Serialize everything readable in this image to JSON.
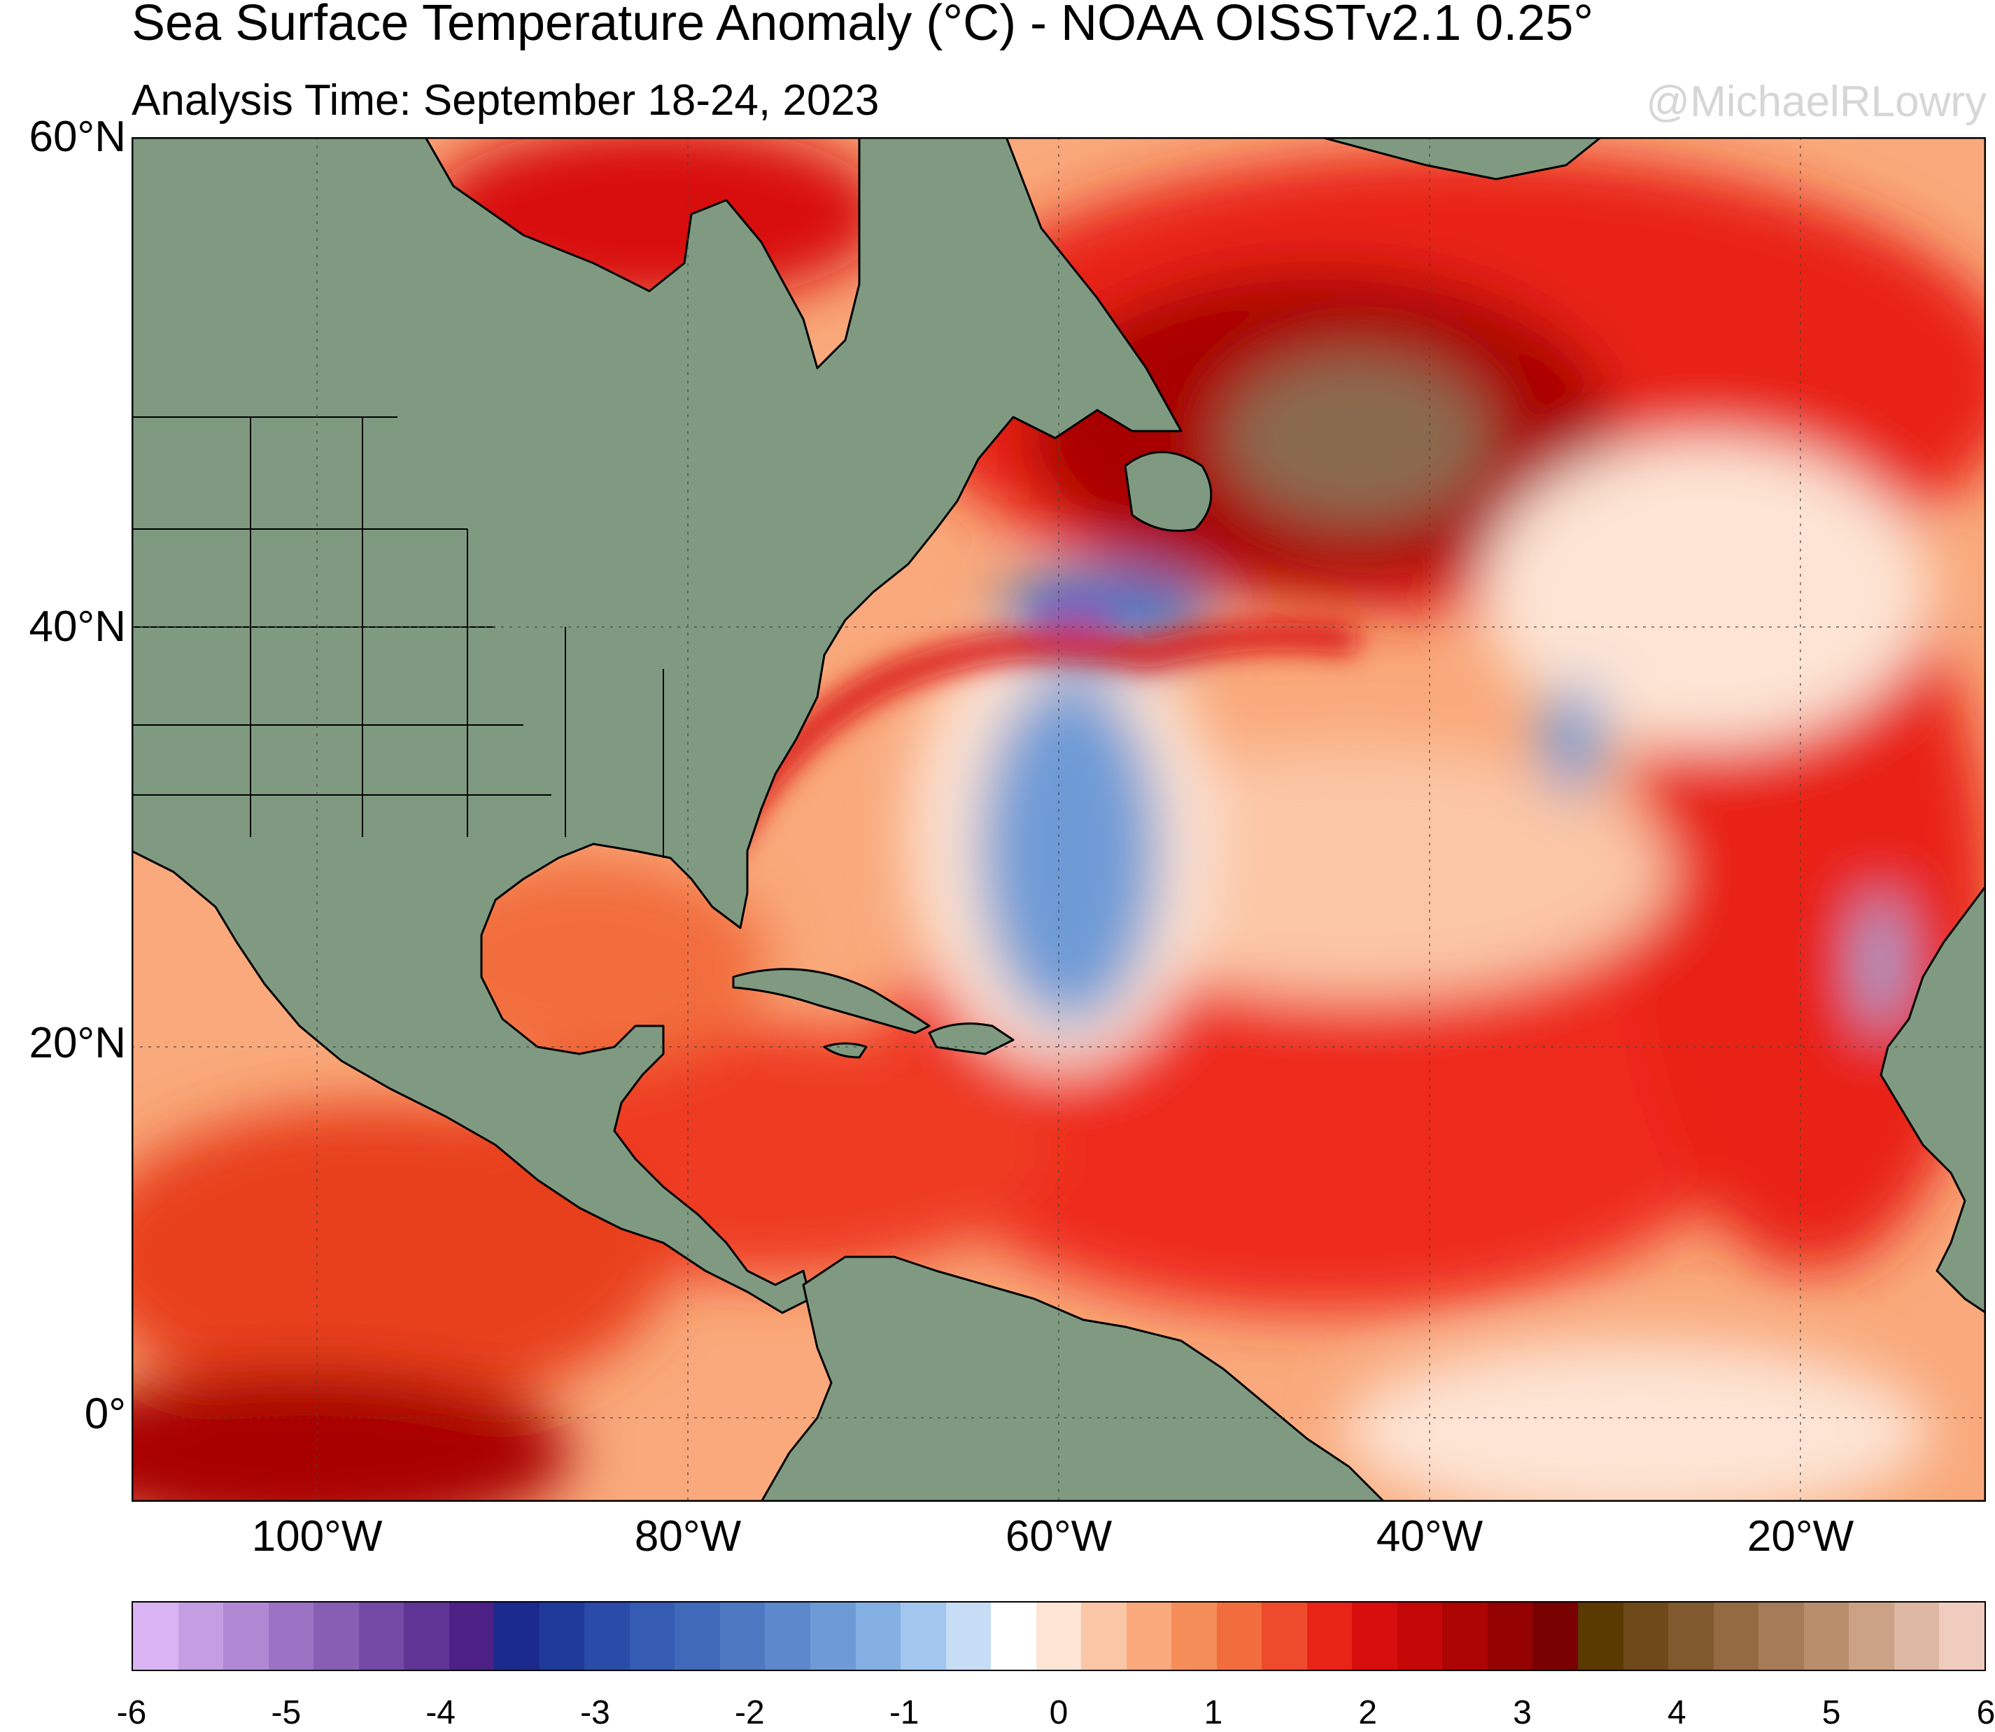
{
  "header": {
    "title": "Sea Surface Temperature Anomaly (°C) - NOAA OISSTv2.1 0.25°",
    "subtitle": "Analysis Time: September 18-24, 2023",
    "credit": "@MichaelRLowry"
  },
  "map": {
    "lat_labels": [
      "60°N",
      "40°N",
      "20°N",
      "0°"
    ],
    "lon_labels": [
      "100°W",
      "80°W",
      "60°W",
      "40°W",
      "20°W"
    ],
    "land_color": "#7f9a80",
    "extent": {
      "lon_min": -110,
      "lon_max": -10,
      "lat_min": -5,
      "lat_max": 60
    }
  },
  "colorbar": {
    "tick_labels": [
      "-6",
      "-5",
      "-4",
      "-3",
      "-2",
      "-1",
      "0",
      "1",
      "2",
      "3",
      "4",
      "5",
      "6"
    ],
    "colors": [
      "#d9b3f2",
      "#c59de3",
      "#b088d4",
      "#9c73c4",
      "#885eb5",
      "#7449a5",
      "#613595",
      "#4d2086",
      "#1a2a8c",
      "#203a9a",
      "#2a4ba8",
      "#355bb3",
      "#4169b9",
      "#4e78c2",
      "#5d88cb",
      "#6e9bd6",
      "#84afe2",
      "#a2c6ee",
      "#c7dcf5",
      "#ffffff",
      "#fde4d4",
      "#fbc6a6",
      "#f9a97b",
      "#f58d59",
      "#f26d3e",
      "#ee4a2c",
      "#e82416",
      "#d80d0d",
      "#c40808",
      "#ad0404",
      "#950202",
      "#7a0101",
      "#5a3a00",
      "#6e4a1a",
      "#80592e",
      "#946a42",
      "#a67b57",
      "#b88e6d",
      "#cba286",
      "#ddb7a1",
      "#f0ccbf"
    ]
  }
}
